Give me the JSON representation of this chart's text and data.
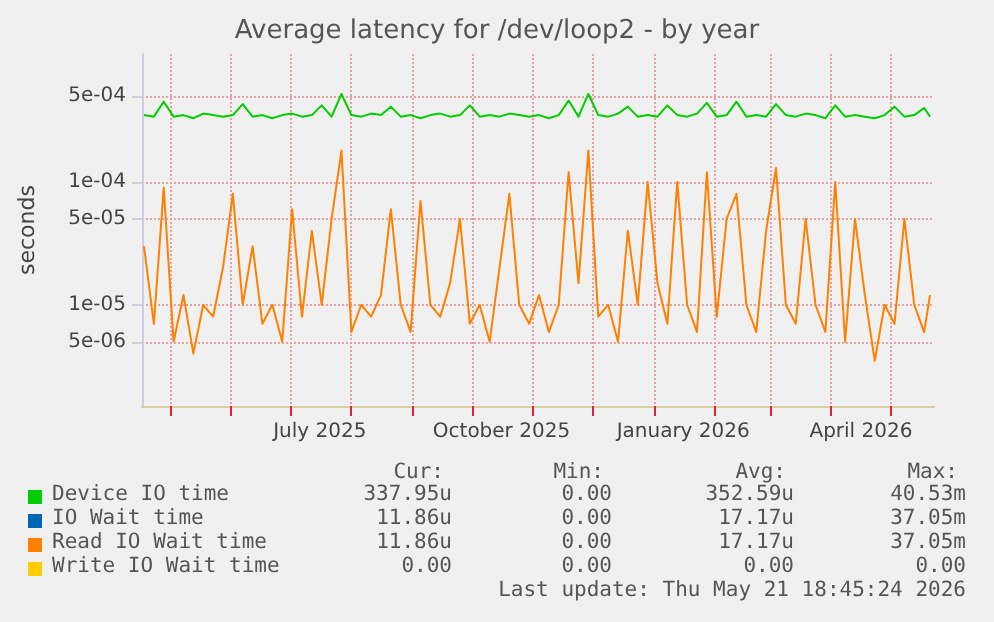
{
  "chart_data": {
    "type": "line",
    "title": "Average latency for /dev/loop2 - by year",
    "ylabel": "seconds",
    "log": "y",
    "grid": true,
    "legend": "bottom",
    "marker": "none",
    "line_style": "solid",
    "ylim": [
      1.5e-06,
      0.0011
    ],
    "yticks": [
      {
        "value": 5e-06,
        "label": "5e-06"
      },
      {
        "value": 1e-05,
        "label": "1e-05"
      },
      {
        "value": 5e-05,
        "label": "5e-05"
      },
      {
        "value": 0.0001,
        "label": "1e-04"
      },
      {
        "value": 0.0005,
        "label": "5e-04"
      }
    ],
    "xlim": [
      "2025-04-17",
      "2026-05-23"
    ],
    "xticks": [
      {
        "value": "2025-05-01",
        "label": null
      },
      {
        "value": "2025-06-01",
        "label": null
      },
      {
        "value": "2025-07-01",
        "label": null
      },
      {
        "value": "2025-07-16",
        "label": "July 2025"
      },
      {
        "value": "2025-08-01",
        "label": null
      },
      {
        "value": "2025-09-01",
        "label": null
      },
      {
        "value": "2025-10-01",
        "label": null
      },
      {
        "value": "2025-10-16",
        "label": "October 2025"
      },
      {
        "value": "2025-11-01",
        "label": null
      },
      {
        "value": "2025-12-01",
        "label": null
      },
      {
        "value": "2026-01-01",
        "label": null
      },
      {
        "value": "2026-01-16",
        "label": "January 2026"
      },
      {
        "value": "2026-02-01",
        "label": null
      },
      {
        "value": "2026-03-01",
        "label": null
      },
      {
        "value": "2026-04-01",
        "label": null
      },
      {
        "value": "2026-04-16",
        "label": "April 2026"
      },
      {
        "value": "2026-05-01",
        "label": null
      }
    ],
    "x": [
      "2025-04-18",
      "2025-04-23",
      "2025-04-28",
      "2025-05-03",
      "2025-05-08",
      "2025-05-13",
      "2025-05-18",
      "2025-05-23",
      "2025-05-28",
      "2025-06-02",
      "2025-06-07",
      "2025-06-12",
      "2025-06-17",
      "2025-06-22",
      "2025-06-27",
      "2025-07-02",
      "2025-07-07",
      "2025-07-12",
      "2025-07-17",
      "2025-07-22",
      "2025-07-27",
      "2025-08-01",
      "2025-08-06",
      "2025-08-11",
      "2025-08-16",
      "2025-08-21",
      "2025-08-26",
      "2025-08-31",
      "2025-09-05",
      "2025-09-10",
      "2025-09-15",
      "2025-09-20",
      "2025-09-25",
      "2025-09-30",
      "2025-10-05",
      "2025-10-10",
      "2025-10-15",
      "2025-10-20",
      "2025-10-25",
      "2025-10-30",
      "2025-11-04",
      "2025-11-09",
      "2025-11-14",
      "2025-11-19",
      "2025-11-24",
      "2025-11-29",
      "2025-12-04",
      "2025-12-09",
      "2025-12-14",
      "2025-12-19",
      "2025-12-24",
      "2025-12-29",
      "2026-01-03",
      "2026-01-08",
      "2026-01-13",
      "2026-01-18",
      "2026-01-23",
      "2026-01-28",
      "2026-02-02",
      "2026-02-07",
      "2026-02-12",
      "2026-02-17",
      "2026-02-22",
      "2026-02-27",
      "2026-03-04",
      "2026-03-09",
      "2026-03-14",
      "2026-03-19",
      "2026-03-24",
      "2026-03-29",
      "2026-04-03",
      "2026-04-08",
      "2026-04-13",
      "2026-04-18",
      "2026-04-23",
      "2026-04-28",
      "2026-05-03",
      "2026-05-08",
      "2026-05-13",
      "2026-05-18",
      "2026-05-21"
    ],
    "series": [
      {
        "name": "Device IO time",
        "color": "#00cc00",
        "values": [
          0.00035,
          0.00034,
          0.00045,
          0.00034,
          0.00035,
          0.00033,
          0.00036,
          0.00035,
          0.00034,
          0.00035,
          0.00043,
          0.00034,
          0.00035,
          0.00033,
          0.00035,
          0.00036,
          0.00034,
          0.00035,
          0.00042,
          0.00034,
          0.00052,
          0.00035,
          0.00034,
          0.00036,
          0.00035,
          0.00041,
          0.00034,
          0.00035,
          0.00033,
          0.00035,
          0.00036,
          0.00034,
          0.00035,
          0.00042,
          0.00034,
          0.00035,
          0.00034,
          0.00036,
          0.00035,
          0.00034,
          0.00035,
          0.00033,
          0.00035,
          0.00046,
          0.00034,
          0.00052,
          0.00035,
          0.00034,
          0.00036,
          0.00041,
          0.00034,
          0.00035,
          0.00034,
          0.00042,
          0.00035,
          0.00034,
          0.00036,
          0.00044,
          0.00034,
          0.00035,
          0.00045,
          0.00034,
          0.00035,
          0.00034,
          0.00043,
          0.00035,
          0.00034,
          0.00036,
          0.00035,
          0.00033,
          0.00042,
          0.00034,
          0.00035,
          0.00034,
          0.00033,
          0.00035,
          0.00041,
          0.00034,
          0.00035,
          0.0004,
          0.00034
        ]
      },
      {
        "name": "IO Wait time",
        "color": "#0066b3",
        "values": [
          null,
          null,
          null,
          null,
          null,
          null,
          null,
          null,
          null,
          null,
          null,
          null,
          null,
          null,
          null,
          null,
          null,
          null,
          null,
          null,
          null,
          null,
          null,
          null,
          null,
          null,
          null,
          null,
          null,
          null,
          null,
          null,
          null,
          null,
          null,
          null,
          null,
          null,
          null,
          null,
          null,
          null,
          null,
          null,
          null,
          null,
          null,
          null,
          null,
          null,
          null,
          null,
          null,
          null,
          null,
          null,
          null,
          null,
          null,
          null,
          null,
          null,
          null,
          null,
          null,
          null,
          null,
          null,
          null,
          null,
          null,
          null,
          null,
          null,
          null,
          null,
          null,
          null,
          null,
          null,
          null
        ]
      },
      {
        "name": "Read IO Wait time",
        "color": "#ff8000",
        "values": [
          3e-05,
          7e-06,
          9e-05,
          5e-06,
          1.2e-05,
          4e-06,
          1e-05,
          8e-06,
          2e-05,
          8e-05,
          1e-05,
          3e-05,
          7e-06,
          1e-05,
          5e-06,
          6e-05,
          8e-06,
          4e-05,
          1e-05,
          5e-05,
          0.00018,
          6e-06,
          1e-05,
          8e-06,
          1.2e-05,
          6e-05,
          1e-05,
          6e-06,
          7e-05,
          1e-05,
          8e-06,
          1.5e-05,
          5e-05,
          7e-06,
          1e-05,
          5e-06,
          2e-05,
          8e-05,
          1e-05,
          7e-06,
          1.2e-05,
          6e-06,
          1e-05,
          0.00012,
          1.5e-05,
          0.00018,
          8e-06,
          1e-05,
          5e-06,
          4e-05,
          1e-05,
          0.0001,
          1.5e-05,
          7e-06,
          0.0001,
          1e-05,
          6e-06,
          0.00012,
          8e-06,
          5e-05,
          8e-05,
          1e-05,
          6e-06,
          4e-05,
          0.00013,
          1e-05,
          7e-06,
          5e-05,
          1e-05,
          6e-06,
          0.0001,
          5e-06,
          5e-05,
          1.2e-05,
          3.5e-06,
          1e-05,
          7e-06,
          5e-05,
          1e-05,
          6e-06,
          1.2e-05
        ]
      },
      {
        "name": "Write IO Wait time",
        "color": "#ffcc00",
        "values": [
          null,
          null,
          null,
          null,
          null,
          null,
          null,
          null,
          null,
          null,
          null,
          null,
          null,
          null,
          null,
          null,
          null,
          null,
          null,
          null,
          null,
          null,
          null,
          null,
          null,
          null,
          null,
          null,
          null,
          null,
          null,
          null,
          null,
          null,
          null,
          null,
          null,
          null,
          null,
          null,
          null,
          null,
          null,
          null,
          null,
          null,
          null,
          null,
          null,
          null,
          null,
          null,
          null,
          null,
          null,
          null,
          null,
          null,
          null,
          null,
          null,
          null,
          null,
          null,
          null,
          null,
          null,
          null,
          null,
          null,
          null,
          null,
          null,
          null,
          null,
          null,
          null,
          null,
          null,
          null,
          null
        ]
      }
    ],
    "annotations": [
      "Cur:",
      "Min:",
      "Avg:",
      "Max:",
      "337.95u",
      "0.00",
      "352.59u",
      "40.53m",
      "11.86u",
      "0.00",
      "17.17u",
      "37.05m",
      "11.86u",
      "0.00",
      "17.17u",
      "37.05m",
      "0.00",
      "0.00",
      "0.00",
      "0.00",
      "Last update: Thu May 21 18:45:24 2026"
    ]
  }
}
